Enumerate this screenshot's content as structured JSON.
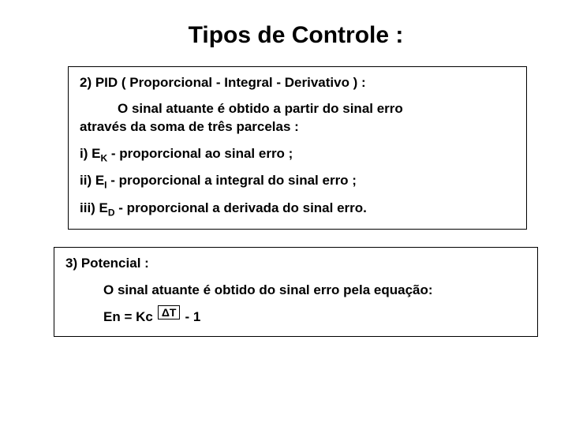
{
  "title": "Tipos de Controle :",
  "box_pid": {
    "heading": "2)  PID ( Proporcional - Integral - Derivativo ) :",
    "intro_line1": "O sinal atuante é obtido a partir do sinal erro",
    "intro_line2": "através da soma de três parcelas :",
    "item_i_pre": "i) E",
    "item_i_sub": "K",
    "item_i_post": " - proporcional ao sinal erro ;",
    "item_ii_pre": "ii) E",
    "item_ii_sub": "I",
    "item_ii_post": " - proporcional a integral do sinal erro ;",
    "item_iii_pre": "iii) E",
    "item_iii_sub": "D",
    "item_iii_post": " - proporcional a derivada do sinal erro."
  },
  "box_pot": {
    "heading": "3) Potencial :",
    "line": "O sinal atuante é obtido do sinal erro pela equação:",
    "eq_left": "En = Kc",
    "eq_exp": "ΔT",
    "eq_right": "- 1"
  },
  "colors": {
    "text": "#000000",
    "background": "#ffffff",
    "border": "#000000"
  }
}
